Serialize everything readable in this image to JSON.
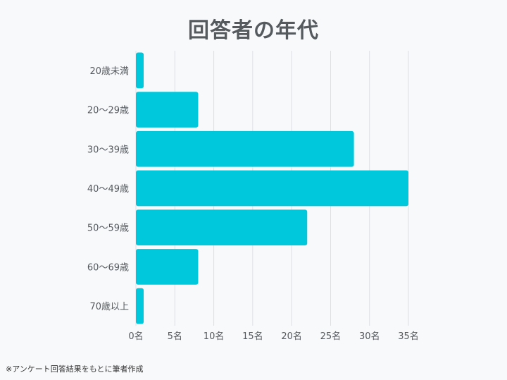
{
  "chart_data": {
    "type": "bar",
    "orientation": "horizontal",
    "title": "回答者の年代",
    "categories": [
      "20歳未満",
      "20〜29歳",
      "30〜39歳",
      "40〜49歳",
      "50〜59歳",
      "60〜69歳",
      "70歳以上"
    ],
    "values": [
      1,
      8,
      28,
      35,
      22,
      8,
      1
    ],
    "xlim": [
      0,
      35
    ],
    "x_ticks": [
      0,
      5,
      10,
      15,
      20,
      25,
      30,
      35
    ],
    "x_tick_labels": [
      "0名",
      "5名",
      "10名",
      "15名",
      "20名",
      "25名",
      "30名",
      "35名"
    ],
    "grid": true,
    "bar_color": "#00c8dc",
    "grid_color": "#dcdfe3"
  },
  "footnote": "※アンケート回答結果をもとに筆者作成"
}
